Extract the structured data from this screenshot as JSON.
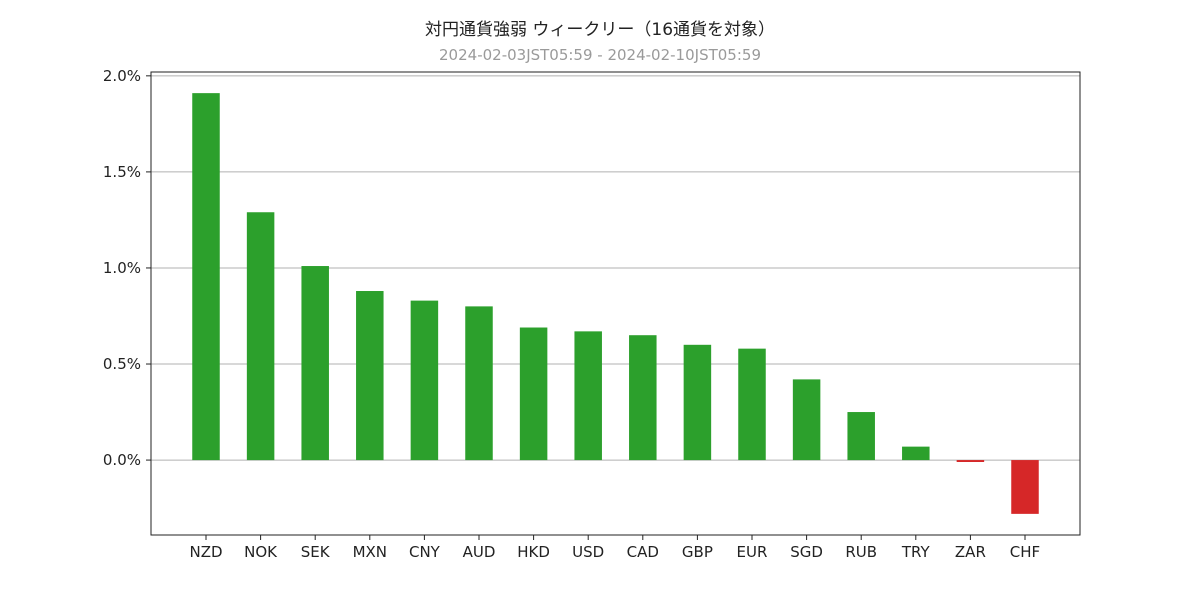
{
  "chart_data": {
    "type": "bar",
    "title": "対円通貨強弱 ウィークリー（16通貨を対象）",
    "subtitle": "2024-02-03JST05:59 - 2024-02-10JST05:59",
    "xlabel": "",
    "ylabel": "",
    "categories": [
      "NZD",
      "NOK",
      "SEK",
      "MXN",
      "CNY",
      "AUD",
      "HKD",
      "USD",
      "CAD",
      "GBP",
      "EUR",
      "SGD",
      "RUB",
      "TRY",
      "ZAR",
      "CHF"
    ],
    "values": [
      1.91,
      1.29,
      1.01,
      0.88,
      0.83,
      0.8,
      0.69,
      0.67,
      0.65,
      0.6,
      0.58,
      0.42,
      0.25,
      0.07,
      -0.01,
      -0.28
    ],
    "ylim": [
      -0.39,
      2.02
    ],
    "yticks": [
      0.0,
      0.5,
      1.0,
      1.5,
      2.0
    ],
    "ytick_labels": [
      "0.0%",
      "0.5%",
      "1.0%",
      "1.5%",
      "2.0%"
    ],
    "grid": "horizontal",
    "legend": "none",
    "colors": {
      "positive": "#2ca02c",
      "negative": "#d62728",
      "grid": "#b0b0b0"
    }
  }
}
